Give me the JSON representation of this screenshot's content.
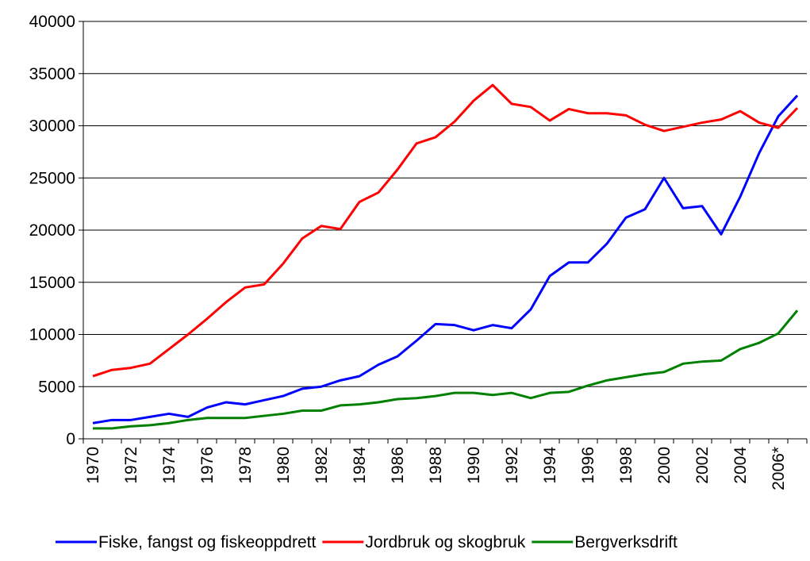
{
  "chart_data": {
    "type": "line",
    "categories": [
      "1970",
      null,
      "1972",
      null,
      "1974",
      null,
      "1976",
      null,
      "1978",
      null,
      "1980",
      null,
      "1982",
      null,
      "1984",
      null,
      "1986",
      null,
      "1988",
      null,
      "1990",
      null,
      "1992",
      null,
      "1994",
      null,
      "1996",
      null,
      "1998",
      null,
      "2000",
      null,
      "2002",
      null,
      "2004",
      null,
      "2006*",
      null
    ],
    "series": [
      {
        "name": "Fiske, fangst og fiskeoppdrett",
        "color": "#0000ff",
        "values": [
          1500,
          1800,
          1800,
          2100,
          2400,
          2100,
          3000,
          3500,
          3300,
          3700,
          4100,
          4800,
          5000,
          5600,
          6000,
          7100,
          7900,
          9400,
          11000,
          10900,
          10400,
          10900,
          10600,
          12400,
          15600,
          16900,
          16900,
          18700,
          21200,
          22000,
          25000,
          22100,
          22300,
          19600,
          23200,
          27400,
          30900,
          32900
        ]
      },
      {
        "name": "Jordbruk og skogbruk",
        "color": "#ff0000",
        "values": [
          6000,
          6600,
          6800,
          7200,
          8600,
          10000,
          11500,
          13100,
          14500,
          14800,
          16800,
          19200,
          20400,
          20100,
          22700,
          23600,
          25800,
          28300,
          28900,
          30400,
          32400,
          33900,
          32100,
          31800,
          30500,
          31600,
          31200,
          31200,
          31000,
          30100,
          29500,
          29900,
          30300,
          30600,
          31400,
          30300,
          29800,
          31700
        ]
      },
      {
        "name": "Bergverksdrift",
        "color": "#008000",
        "values": [
          1000,
          1000,
          1200,
          1300,
          1500,
          1800,
          2000,
          2000,
          2000,
          2200,
          2400,
          2700,
          2700,
          3200,
          3300,
          3500,
          3800,
          3900,
          4100,
          4400,
          4400,
          4200,
          4400,
          3900,
          4400,
          4500,
          5100,
          5600,
          5900,
          6200,
          6400,
          7200,
          7400,
          7500,
          8600,
          9200,
          10100,
          12300
        ]
      }
    ],
    "ylim": [
      0,
      40000
    ],
    "yticks": [
      0,
      5000,
      10000,
      15000,
      20000,
      25000,
      30000,
      35000,
      40000
    ],
    "grid": true,
    "legend": "bottom"
  }
}
